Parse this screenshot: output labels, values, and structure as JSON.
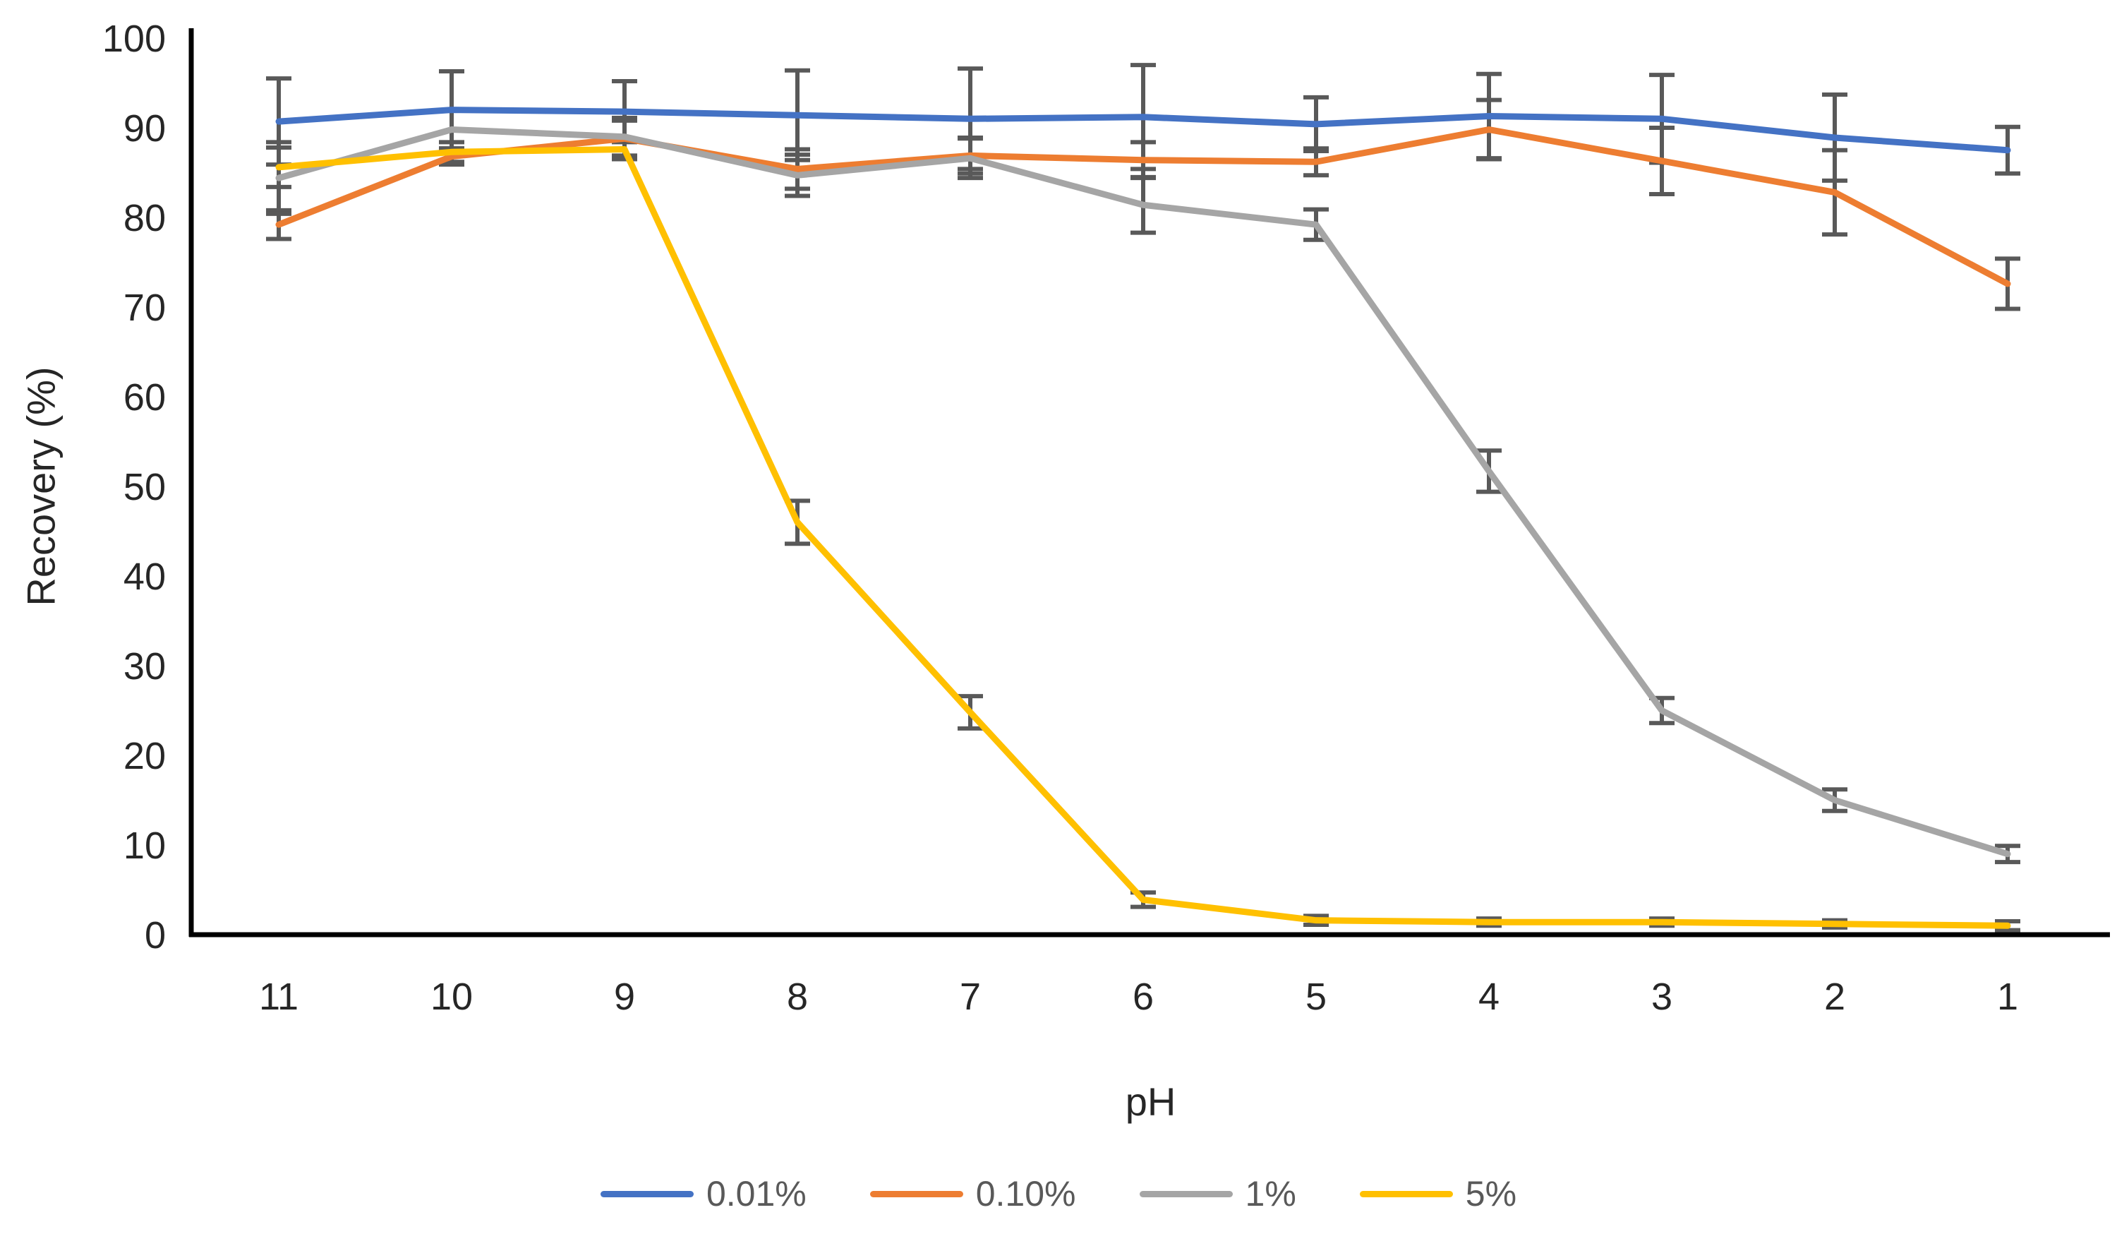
{
  "chart_data": {
    "type": "line",
    "title": "",
    "xlabel": "pH",
    "ylabel": "Recovery (%)",
    "x_categories": [
      "11",
      "10",
      "9",
      "8",
      "7",
      "6",
      "5",
      "4",
      "3",
      "2",
      "1"
    ],
    "y_ticks": [
      0,
      10,
      20,
      30,
      40,
      50,
      60,
      70,
      80,
      90,
      100
    ],
    "ylim": [
      0,
      100
    ],
    "grid": false,
    "legend_position": "bottom",
    "axis_color": "#000000",
    "tick_label_color": "#262626",
    "legend_text_color": "#595959",
    "error_bar_color": "#595959",
    "series": [
      {
        "name": "0.01%",
        "color": "#4472C4",
        "values": [
          90.7,
          92.0,
          91.8,
          91.4,
          91.0,
          91.2,
          90.4,
          91.3,
          91.0,
          88.9,
          87.5
        ],
        "errors": [
          4.8,
          4.3,
          3.4,
          5.0,
          5.6,
          5.8,
          3.0,
          4.7,
          4.9,
          4.8,
          2.6
        ]
      },
      {
        "name": "0.10%",
        "color": "#ED7D31",
        "values": [
          79.2,
          86.8,
          88.8,
          85.4,
          86.9,
          86.4,
          86.2,
          89.8,
          86.3,
          82.8,
          72.6
        ],
        "errors": [
          1.6,
          0.9,
          2.0,
          2.2,
          2.0,
          2.0,
          1.5,
          3.3,
          3.7,
          4.7,
          2.8
        ]
      },
      {
        "name": "1%",
        "color": "#A5A5A5",
        "values": [
          84.4,
          89.8,
          89.0,
          84.7,
          86.6,
          81.4,
          79.2,
          51.7,
          25.0,
          15.0,
          9.0
        ],
        "errors": [
          4.0,
          2.2,
          2.1,
          2.3,
          2.2,
          3.1,
          1.7,
          2.3,
          1.4,
          1.2,
          0.9
        ]
      },
      {
        "name": "5%",
        "color": "#FFC000",
        "values": [
          85.6,
          87.3,
          87.6,
          46.0,
          24.8,
          3.9,
          1.6,
          1.4,
          1.4,
          1.2,
          1.0
        ],
        "errors": [
          2.2,
          1.1,
          1.1,
          2.4,
          1.8,
          0.8,
          0.5,
          0.4,
          0.4,
          0.4,
          0.5
        ]
      }
    ]
  }
}
